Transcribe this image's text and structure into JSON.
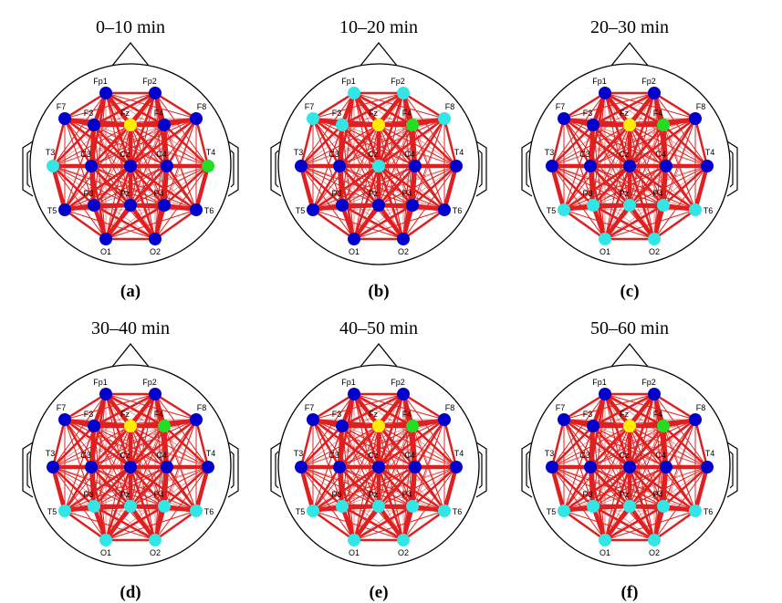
{
  "electrodes": [
    "Fp1",
    "Fp2",
    "F7",
    "F3",
    "Fz",
    "F4",
    "F8",
    "T3",
    "C3",
    "Cz",
    "C4",
    "T4",
    "T5",
    "P3",
    "Pz",
    "P4",
    "T6",
    "O1",
    "O2"
  ],
  "palette": {
    "blue": "#0000cc",
    "cyan": "#33e6e6",
    "yellow": "#ffee00",
    "green": "#22dd22"
  },
  "panels": [
    {
      "title": "0–10 min",
      "label": "(a)",
      "node_colors": [
        "blue",
        "blue",
        "blue",
        "blue",
        "yellow",
        "blue",
        "blue",
        "cyan",
        "blue",
        "blue",
        "blue",
        "green",
        "blue",
        "blue",
        "blue",
        "blue",
        "blue",
        "blue",
        "blue"
      ]
    },
    {
      "title": "10–20 min",
      "label": "(b)",
      "node_colors": [
        "cyan",
        "cyan",
        "cyan",
        "cyan",
        "yellow",
        "green",
        "cyan",
        "blue",
        "blue",
        "cyan",
        "blue",
        "blue",
        "blue",
        "blue",
        "blue",
        "blue",
        "blue",
        "blue",
        "blue"
      ]
    },
    {
      "title": "20–30 min",
      "label": "(c)",
      "node_colors": [
        "blue",
        "blue",
        "blue",
        "blue",
        "yellow",
        "green",
        "blue",
        "blue",
        "blue",
        "blue",
        "blue",
        "blue",
        "cyan",
        "cyan",
        "cyan",
        "cyan",
        "cyan",
        "cyan",
        "cyan"
      ]
    },
    {
      "title": "30–40 min",
      "label": "(d)",
      "node_colors": [
        "blue",
        "blue",
        "blue",
        "blue",
        "yellow",
        "green",
        "blue",
        "blue",
        "blue",
        "blue",
        "blue",
        "blue",
        "cyan",
        "cyan",
        "cyan",
        "cyan",
        "cyan",
        "cyan",
        "cyan"
      ]
    },
    {
      "title": "40–50 min",
      "label": "(e)",
      "node_colors": [
        "blue",
        "blue",
        "blue",
        "blue",
        "yellow",
        "green",
        "blue",
        "blue",
        "blue",
        "blue",
        "blue",
        "blue",
        "cyan",
        "cyan",
        "cyan",
        "cyan",
        "cyan",
        "cyan",
        "cyan"
      ]
    },
    {
      "title": "50–60 min",
      "label": "(f)",
      "node_colors": [
        "blue",
        "blue",
        "blue",
        "blue",
        "yellow",
        "green",
        "blue",
        "blue",
        "blue",
        "blue",
        "blue",
        "blue",
        "cyan",
        "cyan",
        "cyan",
        "cyan",
        "cyan",
        "cyan",
        "cyan"
      ]
    }
  ]
}
